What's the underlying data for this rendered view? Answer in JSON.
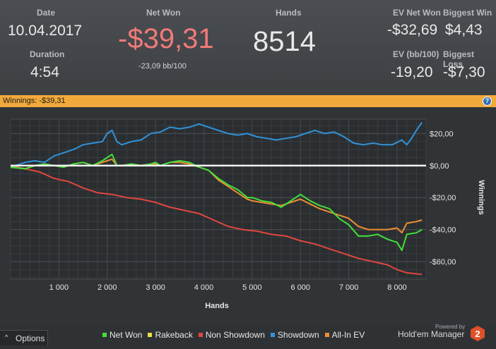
{
  "stats": {
    "date_label": "Date",
    "date_value": "10.04.2017",
    "duration_label": "Duration",
    "duration_value": "4:54",
    "net_won_label": "Net Won",
    "net_won_value": "-$39,31",
    "net_won_sub": "-23,09 bb/100",
    "hands_label": "Hands",
    "hands_value": "8514",
    "ev_net_won_label": "EV Net Won",
    "ev_net_won_value": "-$32,69",
    "biggest_win_label": "Biggest Win",
    "biggest_win_value": "$4,43",
    "ev_bb_label": "EV (bb/100)",
    "ev_bb_value": "-19,20",
    "biggest_loss_label": "Biggest Loss",
    "biggest_loss_value": "-$7,30"
  },
  "bar": {
    "label": "Winnings:",
    "value": "-$39,31",
    "help_label": "?"
  },
  "chart_data": {
    "type": "line",
    "xlabel": "Hands",
    "ylabel": "Winnings",
    "xlim": [
      0,
      8600
    ],
    "ylim": [
      -71,
      29
    ],
    "x_ticks": [
      1000,
      2000,
      3000,
      4000,
      5000,
      6000,
      7000,
      8000
    ],
    "x_tick_labels": [
      "1 000",
      "2 000",
      "3 000",
      "4 000",
      "5 000",
      "6 000",
      "7 000",
      "8 000"
    ],
    "y_ticks": [
      20,
      0,
      -20,
      -40,
      -60
    ],
    "y_tick_labels": [
      "$20,00",
      "$0,00",
      "-$20,00",
      "-$40,00",
      "-$60,00"
    ],
    "grid": true,
    "legend_position": "bottom",
    "series": [
      {
        "name": "Net Won",
        "color": "#3fe13b",
        "x": [
          0,
          300,
          500,
          700,
          900,
          1100,
          1300,
          1500,
          1700,
          1900,
          2000,
          2100,
          2200,
          2300,
          2500,
          2700,
          2900,
          3000,
          3100,
          3300,
          3500,
          3700,
          3900,
          4100,
          4300,
          4500,
          4700,
          4900,
          5000,
          5200,
          5400,
          5600,
          5800,
          6000,
          6200,
          6400,
          6600,
          6800,
          7000,
          7200,
          7400,
          7600,
          7800,
          8000,
          8100,
          8200,
          8400,
          8514
        ],
        "y": [
          -1,
          -2,
          0,
          1,
          0,
          -1,
          1,
          2,
          0,
          3,
          5,
          7,
          0,
          0,
          1,
          0,
          1,
          2,
          0,
          2,
          3,
          2,
          -1,
          -3,
          -8,
          -12,
          -15,
          -20,
          -20,
          -22,
          -23,
          -26,
          -22,
          -18,
          -22,
          -25,
          -27,
          -33,
          -37,
          -44,
          -44,
          -43,
          -46,
          -48,
          -53,
          -43,
          -42,
          -40
        ]
      },
      {
        "name": "Rakeback",
        "color": "#e8e04a",
        "x": [
          0,
          8514
        ],
        "y": [
          0,
          0
        ]
      },
      {
        "name": "Non Showdown",
        "color": "#e0463f",
        "x": [
          0,
          300,
          600,
          900,
          1200,
          1500,
          1800,
          2100,
          2400,
          2700,
          3000,
          3300,
          3600,
          3900,
          4200,
          4500,
          4800,
          5100,
          5400,
          5700,
          6000,
          6300,
          6600,
          6900,
          7200,
          7500,
          7800,
          8000,
          8200,
          8514
        ],
        "y": [
          0,
          -2,
          -4,
          -8,
          -10,
          -14,
          -17,
          -18,
          -20,
          -21,
          -23,
          -26,
          -28,
          -30,
          -34,
          -38,
          -40,
          -41,
          -43,
          -44,
          -47,
          -49,
          -52,
          -55,
          -58,
          -60,
          -62,
          -65,
          -67,
          -68
        ]
      },
      {
        "name": "Showdown",
        "color": "#2f93d9",
        "x": [
          0,
          300,
          500,
          700,
          900,
          1100,
          1300,
          1500,
          1700,
          1900,
          2000,
          2100,
          2200,
          2300,
          2500,
          2700,
          2900,
          3100,
          3300,
          3500,
          3700,
          3900,
          4100,
          4300,
          4500,
          4700,
          4900,
          5100,
          5300,
          5500,
          5700,
          5900,
          6100,
          6300,
          6500,
          6700,
          6900,
          7100,
          7300,
          7500,
          7700,
          7900,
          8100,
          8200,
          8300,
          8400,
          8514
        ],
        "y": [
          -1,
          2,
          3,
          2,
          6,
          8,
          10,
          13,
          14,
          15,
          20,
          22,
          15,
          13,
          15,
          16,
          20,
          21,
          24,
          23,
          24,
          26,
          24,
          22,
          20,
          19,
          20,
          18,
          17,
          16,
          17,
          18,
          20,
          22,
          20,
          21,
          18,
          14,
          13,
          14,
          13,
          13,
          16,
          13,
          17,
          22,
          27
        ]
      },
      {
        "name": "All-In EV",
        "color": "#ee8e33",
        "x": [
          0,
          300,
          500,
          700,
          900,
          1100,
          1300,
          1500,
          1700,
          1900,
          2000,
          2100,
          2200,
          2300,
          2500,
          2700,
          2900,
          3000,
          3100,
          3300,
          3500,
          3700,
          3900,
          4100,
          4300,
          4500,
          4700,
          4900,
          5000,
          5200,
          5400,
          5600,
          5800,
          6000,
          6200,
          6400,
          6600,
          6800,
          7000,
          7200,
          7400,
          7600,
          7800,
          8000,
          8100,
          8200,
          8400,
          8514
        ],
        "y": [
          -1,
          -2,
          0,
          1,
          0,
          -1,
          1,
          2,
          0,
          2,
          3,
          4,
          0,
          0,
          1,
          0,
          1,
          1,
          0,
          2,
          2,
          1,
          -1,
          -3,
          -9,
          -13,
          -17,
          -21,
          -22,
          -23,
          -24,
          -25,
          -23,
          -21,
          -24,
          -27,
          -29,
          -31,
          -33,
          -38,
          -40,
          -40,
          -40,
          -39,
          -42,
          -36,
          -35,
          -34
        ]
      }
    ]
  },
  "footer": {
    "options_label": "Options",
    "caret": "^",
    "powered_by": "Powered by",
    "brand": "Hold'em Manager",
    "brand_version": "2"
  }
}
